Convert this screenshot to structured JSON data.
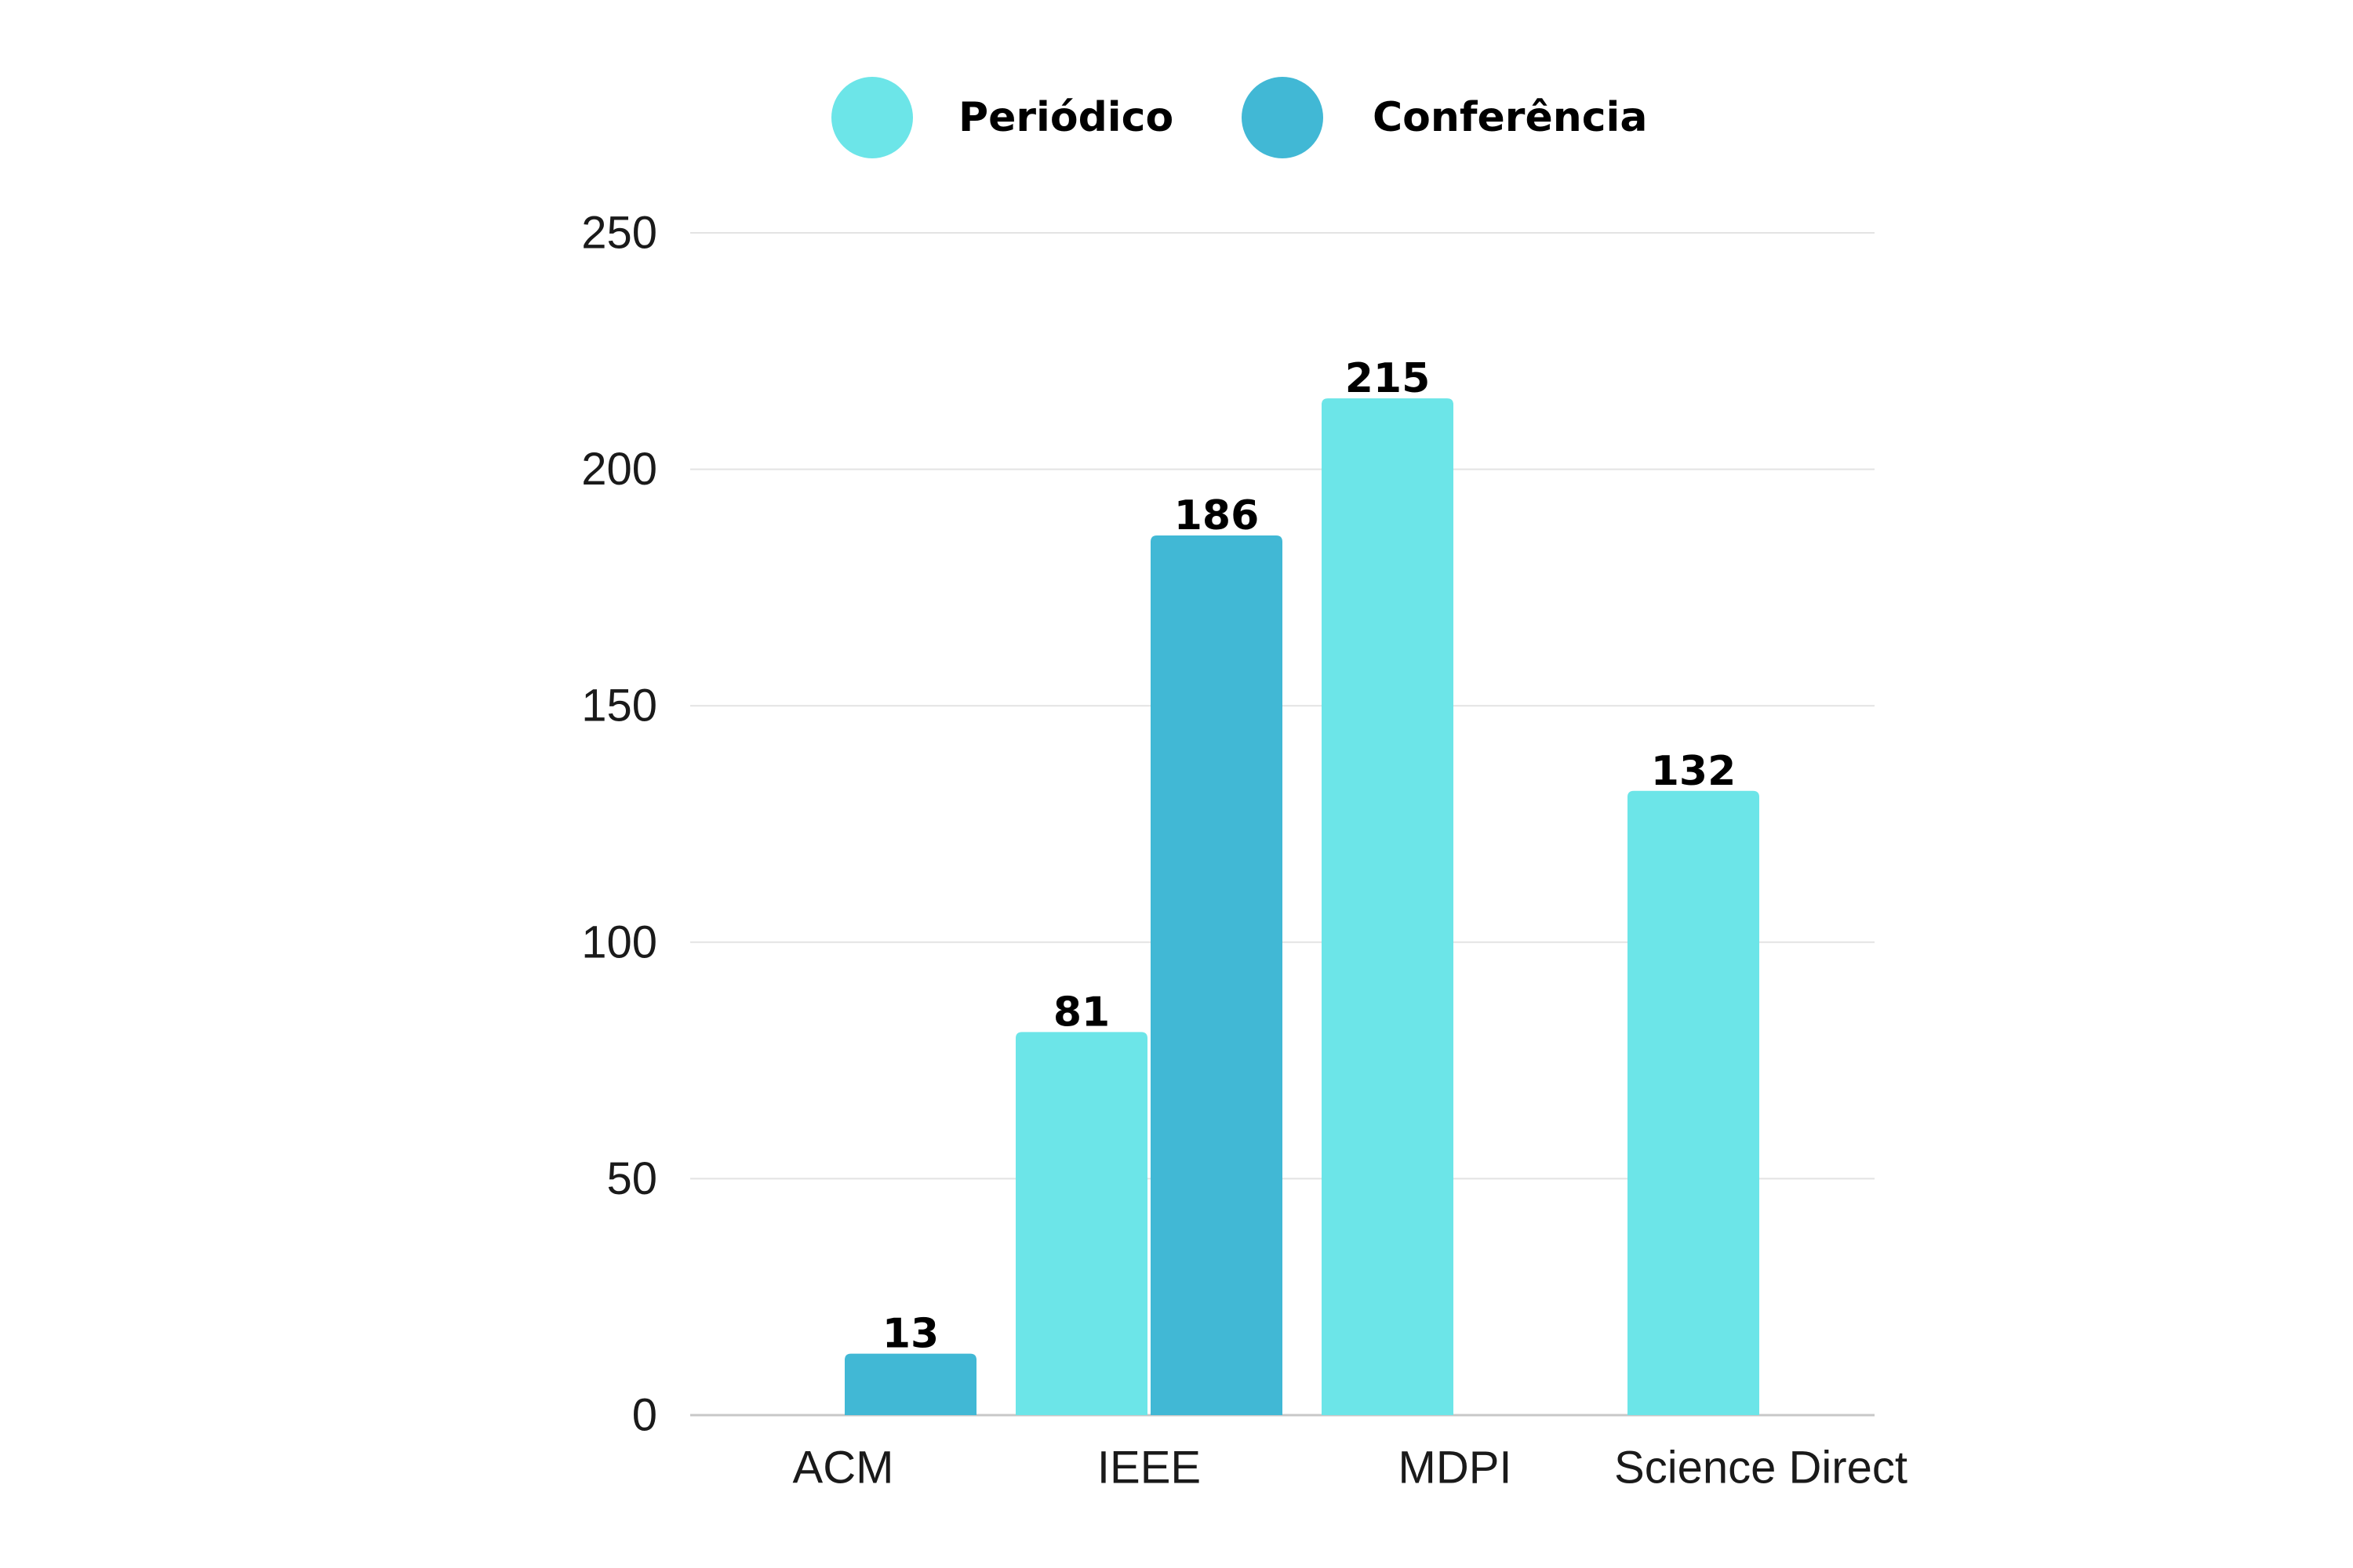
{
  "chart_data": {
    "type": "bar",
    "categories": [
      "ACM",
      "IEEE",
      "MDPI",
      "Science Direct"
    ],
    "series": [
      {
        "name": "Periódico",
        "color": "#6ce5e8",
        "values": [
          null,
          81,
          215,
          132
        ]
      },
      {
        "name": "Conferência",
        "color": "#41b8d5",
        "values": [
          13,
          186,
          null,
          null
        ]
      }
    ],
    "y_ticks": [
      "0",
      "50",
      "100",
      "150",
      "200",
      "250"
    ],
    "ylim": [
      0,
      250
    ],
    "grid": true,
    "legend_position": "top-center",
    "data_labels": true
  }
}
